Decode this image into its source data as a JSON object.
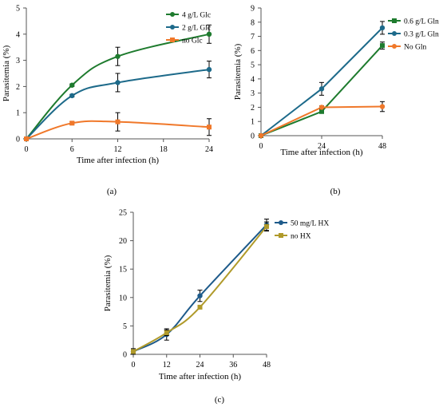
{
  "chart_data": [
    {
      "type": "line",
      "panel_label": "(a)",
      "xlabel": "Time after infection (h)",
      "ylabel": "Parasitemia (%)",
      "x": [
        0,
        6,
        12,
        24
      ],
      "x_ticks": [
        "0",
        "6",
        "12",
        "18",
        "24"
      ],
      "x_tick_values": [
        0,
        6,
        12,
        18,
        24
      ],
      "y_ticks": [
        "0",
        "1",
        "2",
        "3",
        "4",
        "5"
      ],
      "y_tick_values": [
        0,
        1,
        2,
        3,
        4,
        5
      ],
      "xlim": [
        0,
        24
      ],
      "ylim": [
        0,
        5
      ],
      "grid": false,
      "legend_position": "top-right",
      "series": [
        {
          "name": "4 g/L Glc",
          "color": "#1e7b2e",
          "marker": "circle",
          "values": [
            0,
            2.05,
            3.15,
            4.0
          ],
          "errors": [
            0,
            0.05,
            0.35,
            0.35
          ]
        },
        {
          "name": "2 g/L Glc",
          "color": "#1d6a8a",
          "marker": "circle",
          "values": [
            0,
            1.65,
            2.15,
            2.65
          ],
          "errors": [
            0,
            0.05,
            0.35,
            0.32
          ]
        },
        {
          "name": "no Glc",
          "color": "#f0782a",
          "marker": "square",
          "values": [
            0,
            0.6,
            0.65,
            0.45
          ],
          "errors": [
            0,
            0.05,
            0.35,
            0.32
          ]
        }
      ]
    },
    {
      "type": "line",
      "panel_label": "(b)",
      "xlabel": "Time after infection (h)",
      "ylabel": "Parasitemia (%)",
      "x": [
        0,
        24,
        48
      ],
      "x_ticks": [
        "0",
        "24",
        "48"
      ],
      "x_tick_values": [
        0,
        24,
        48
      ],
      "y_ticks": [
        "0",
        "1",
        "2",
        "3",
        "4",
        "5",
        "6",
        "7",
        "8",
        "9"
      ],
      "y_tick_values": [
        0,
        1,
        2,
        3,
        4,
        5,
        6,
        7,
        8,
        9
      ],
      "xlim": [
        0,
        48
      ],
      "ylim": [
        0,
        9
      ],
      "grid": false,
      "legend_position": "top-right",
      "series": [
        {
          "name": "0.6 g/L Gln",
          "color": "#1e7b2e",
          "marker": "square",
          "values": [
            0,
            1.7,
            6.35
          ],
          "errors": [
            0,
            0.1,
            0.25
          ]
        },
        {
          "name": "0.3 g/L Gln",
          "color": "#1d6a8a",
          "marker": "circle",
          "values": [
            0,
            3.3,
            7.6
          ],
          "errors": [
            0,
            0.45,
            0.45
          ]
        },
        {
          "name": "No Gln",
          "color": "#f0782a",
          "marker": "circle",
          "values": [
            0,
            2.0,
            2.05
          ],
          "errors": [
            0,
            0.1,
            0.35
          ]
        }
      ]
    },
    {
      "type": "line",
      "panel_label": "(c)",
      "xlabel": "Time after infection (h)",
      "ylabel": "Parasitemia (%)",
      "x": [
        0,
        12,
        24,
        48
      ],
      "x_ticks": [
        "0",
        "12",
        "24",
        "36",
        "48"
      ],
      "x_tick_values": [
        0,
        12,
        24,
        36,
        48
      ],
      "y_ticks": [
        "0",
        "5",
        "10",
        "15",
        "20",
        "25"
      ],
      "y_tick_values": [
        0,
        5,
        10,
        15,
        20,
        25
      ],
      "xlim": [
        0,
        48
      ],
      "ylim": [
        0,
        25
      ],
      "grid": false,
      "legend_position": "top-right",
      "series": [
        {
          "name": "50 mg/L HX",
          "color": "#1d5a8a",
          "marker": "circle",
          "values": [
            0.5,
            3.5,
            10.3,
            22.8
          ],
          "errors": [
            0.5,
            1.0,
            1.0,
            1.0
          ]
        },
        {
          "name": "no HX",
          "color": "#b09a2a",
          "marker": "square",
          "values": [
            0.5,
            3.8,
            8.3,
            22.5
          ],
          "errors": [
            0,
            0.5,
            0,
            0.8
          ]
        }
      ]
    }
  ]
}
